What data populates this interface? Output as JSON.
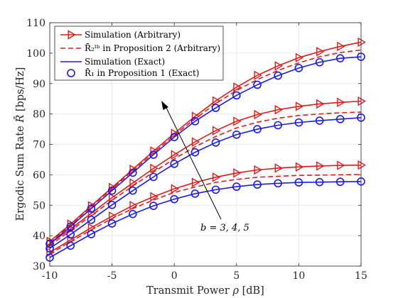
{
  "chart_data": {
    "type": "line",
    "xlabel_text": "Transmit Power",
    "xlabel_sym": "ρ",
    "xlabel_unit": "[dB]",
    "ylabel_text": "Ergodic Sum Rate",
    "ylabel_sym": "R̄",
    "ylabel_unit": "[bps/Hz]",
    "xlim": [
      -10,
      15
    ],
    "ylim": [
      30,
      110
    ],
    "xticks": [
      -10,
      -5,
      0,
      5,
      10,
      15
    ],
    "yticks": [
      30,
      40,
      50,
      60,
      70,
      80,
      90,
      100,
      110
    ],
    "grid": true,
    "legend_position": "top-left",
    "annotation": "b = 3, 4, 5",
    "x": [
      -10,
      -8.33,
      -6.67,
      -5,
      -3.33,
      -1.67,
      0,
      1.67,
      3.33,
      5,
      6.67,
      8.33,
      10,
      11.67,
      13.33,
      15
    ],
    "legend": [
      {
        "label": "Simulation (Arbitrary)",
        "style": "sim_arb"
      },
      {
        "label": "R̄₂ˡᵇ in Proposition 2 (Arbitrary)",
        "style": "prop2"
      },
      {
        "label": "Simulation (Exact)",
        "style": "sim_exact"
      },
      {
        "label": "R̄₁ in Proposition 1 (Exact)",
        "style": "prop1"
      }
    ],
    "series": [
      {
        "group": "b=3",
        "style": "sim_arb",
        "values": [
          34.5,
          38.6,
          42.6,
          46.4,
          49.9,
          52.8,
          55.4,
          57.5,
          59.2,
          60.6,
          61.6,
          62.2,
          62.6,
          62.9,
          63.1,
          63.2
        ]
      },
      {
        "group": "b=3",
        "style": "prop2",
        "values": [
          34.0,
          38.0,
          41.9,
          45.6,
          48.9,
          51.7,
          54.2,
          56.0,
          57.5,
          58.5,
          59.2,
          59.5,
          59.8,
          59.9,
          60.0,
          60.1
        ]
      },
      {
        "group": "b=3",
        "style": "sim_exact",
        "values": [
          32.8,
          36.7,
          40.5,
          44.0,
          47.1,
          49.8,
          52.0,
          53.8,
          55.1,
          56.1,
          56.8,
          57.2,
          57.5,
          57.6,
          57.7,
          57.8
        ]
      },
      {
        "group": "b=4",
        "style": "sim_arb",
        "values": [
          37.4,
          42.2,
          47.3,
          52.5,
          57.3,
          62.1,
          66.6,
          70.8,
          74.5,
          77.6,
          79.8,
          81.4,
          82.5,
          83.3,
          83.8,
          84.2
        ]
      },
      {
        "group": "b=4",
        "style": "prop2",
        "values": [
          36.8,
          41.6,
          46.6,
          51.6,
          56.3,
          60.9,
          65.2,
          69.2,
          72.6,
          75.4,
          77.3,
          78.6,
          79.5,
          80.0,
          80.4,
          80.6
        ]
      },
      {
        "group": "b=4",
        "style": "sim_exact",
        "values": [
          35.8,
          40.4,
          45.2,
          50.1,
          54.8,
          59.3,
          63.6,
          67.4,
          70.6,
          73.2,
          75.0,
          76.3,
          77.2,
          77.8,
          78.3,
          78.8
        ]
      },
      {
        "group": "b=5",
        "style": "sim_arb",
        "values": [
          38.1,
          43.8,
          49.8,
          55.8,
          61.8,
          67.8,
          73.6,
          79.2,
          84.3,
          88.8,
          92.7,
          95.8,
          98.5,
          100.5,
          102.2,
          103.6
        ]
      },
      {
        "group": "b=5",
        "style": "prop2",
        "values": [
          37.8,
          43.5,
          49.5,
          55.4,
          61.3,
          67.2,
          73.0,
          78.4,
          83.4,
          87.7,
          91.3,
          94.3,
          96.8,
          98.8,
          100.2,
          101.0
        ]
      },
      {
        "group": "b=5",
        "style": "sim_exact",
        "values": [
          37.3,
          43.0,
          48.9,
          54.8,
          60.7,
          66.6,
          72.4,
          77.6,
          82.0,
          86.1,
          89.6,
          92.6,
          95.1,
          97.0,
          98.3,
          98.8
        ]
      }
    ],
    "colors": {
      "red": "#e01a1a",
      "blue": "#1a1ae6",
      "grid": "#e6e6e6",
      "axis": "#262626"
    }
  }
}
